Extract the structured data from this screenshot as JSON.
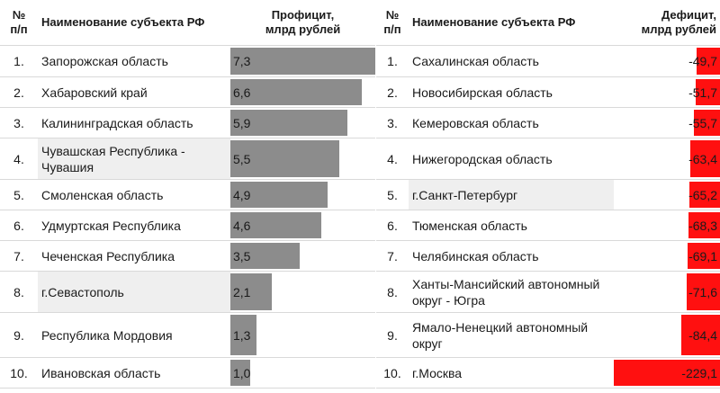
{
  "surplus_table": {
    "header_num": "№\nп/п",
    "header_name": "Наименование субъекта РФ",
    "header_value": "Профицит,\nмлрд рублей",
    "max_value": 7.3,
    "rows": [
      {
        "num": "1.",
        "name": "Запорожская область",
        "value": "7,3",
        "v": 7.3
      },
      {
        "num": "2.",
        "name": "Хабаровский край",
        "value": "6,6",
        "v": 6.6
      },
      {
        "num": "3.",
        "name": "Калининградская область",
        "value": "5,9",
        "v": 5.9
      },
      {
        "num": "4.",
        "name": "Чувашская Республика -\nЧувашия",
        "value": "5,5",
        "v": 5.5
      },
      {
        "num": "5.",
        "name": "Смоленская область",
        "value": "4,9",
        "v": 4.9
      },
      {
        "num": "6.",
        "name": "Удмуртская Республика",
        "value": "4,6",
        "v": 4.6
      },
      {
        "num": "7.",
        "name": "Чеченская Республика",
        "value": "3,5",
        "v": 3.5
      },
      {
        "num": "8.",
        "name": "г.Севастополь",
        "value": "2,1",
        "v": 2.1
      },
      {
        "num": "9.",
        "name": "Республика Мордовия",
        "value": "1,3",
        "v": 1.3
      },
      {
        "num": "10.",
        "name": "Ивановская область",
        "value": "1,0",
        "v": 1.0
      }
    ]
  },
  "deficit_table": {
    "header_num": "№\nп/п",
    "header_name": "Наименование субъекта РФ",
    "header_value": "Дефицит,\nмлрд рублей",
    "max_value": 229.1,
    "rows": [
      {
        "num": "1.",
        "name": "Сахалинская область",
        "value": "-49,7",
        "v": 49.7
      },
      {
        "num": "2.",
        "name": "Новосибирская область",
        "value": "-51,7",
        "v": 51.7
      },
      {
        "num": "3.",
        "name": "Кемеровская область",
        "value": "-55,7",
        "v": 55.7
      },
      {
        "num": "4.",
        "name": "Нижегородская область",
        "value": "-63,4",
        "v": 63.4
      },
      {
        "num": "5.",
        "name": "г.Санкт-Петербург",
        "value": "-65,2",
        "v": 65.2
      },
      {
        "num": "6.",
        "name": "Тюменская область",
        "value": "-68,3",
        "v": 68.3
      },
      {
        "num": "7.",
        "name": "Челябинская область",
        "value": "-69,1",
        "v": 69.1
      },
      {
        "num": "8.",
        "name": "Ханты-Мансийский автономный\nокруг - Югра",
        "value": "-71,6",
        "v": 71.6
      },
      {
        "num": "9.",
        "name": "Ямало-Ненецкий автономный\nокруг",
        "value": "-84,4",
        "v": 84.4
      },
      {
        "num": "10.",
        "name": "г.Москва",
        "value": "-229,1",
        "v": 229.1
      }
    ]
  },
  "colors": {
    "surplus_bar": "#8c8c8c",
    "deficit_bar": "#ff1010",
    "row_shade": "#efefef"
  }
}
